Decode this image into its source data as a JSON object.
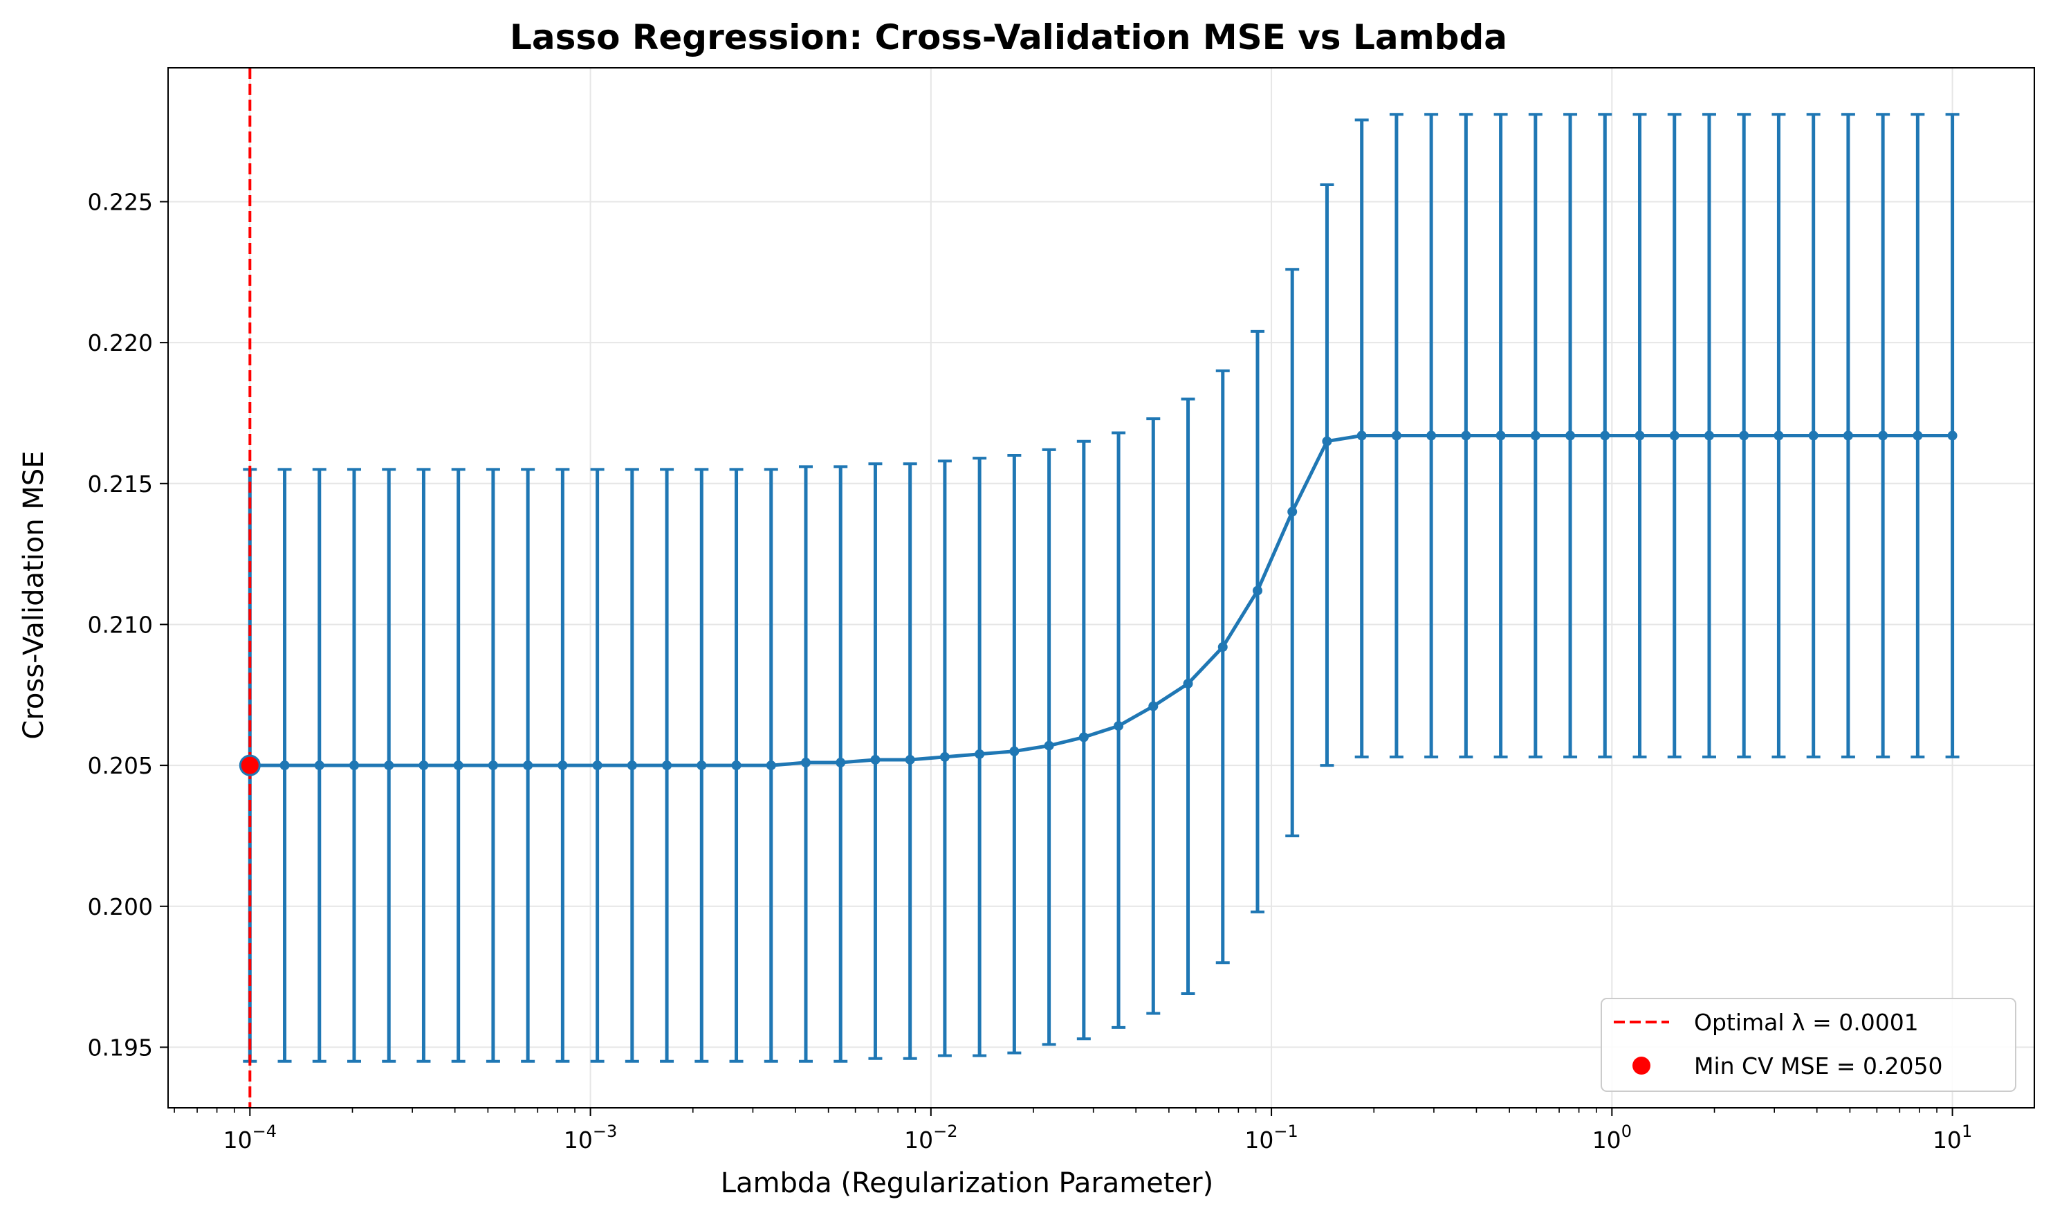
{
  "chart_data": {
    "type": "line",
    "title": "Lasso Regression: Cross-Validation MSE vs Lambda",
    "xlabel": "Lambda (Regularization Parameter)",
    "ylabel": "Cross-Validation MSE",
    "xscale": "log",
    "xlim": [
      5.75e-05,
      17.4
    ],
    "ylim": [
      0.19285,
      0.22975
    ],
    "grid": true,
    "x_ticks": [
      {
        "value": 0.0001,
        "base": "10",
        "exp": "−4"
      },
      {
        "value": 0.001,
        "base": "10",
        "exp": "−3"
      },
      {
        "value": 0.01,
        "base": "10",
        "exp": "−2"
      },
      {
        "value": 0.1,
        "base": "10",
        "exp": "−1"
      },
      {
        "value": 1,
        "base": "10",
        "exp": "0"
      },
      {
        "value": 10,
        "base": "10",
        "exp": "1"
      }
    ],
    "y_ticks": [
      {
        "value": 0.195,
        "label": "0.195"
      },
      {
        "value": 0.2,
        "label": "0.200"
      },
      {
        "value": 0.205,
        "label": "0.205"
      },
      {
        "value": 0.21,
        "label": "0.210"
      },
      {
        "value": 0.215,
        "label": "0.215"
      },
      {
        "value": 0.22,
        "label": "0.220"
      },
      {
        "value": 0.225,
        "label": "0.225"
      }
    ],
    "series": [
      {
        "kind": "errorbar-line",
        "color": "#1f77b4",
        "lambda_range": [
          0.0001,
          10
        ],
        "num_points": 50,
        "mean": [
          0.205,
          0.205,
          0.205,
          0.205,
          0.205,
          0.205,
          0.205,
          0.205,
          0.205,
          0.205,
          0.205,
          0.205,
          0.205,
          0.205,
          0.205,
          0.205,
          0.2051,
          0.2051,
          0.2052,
          0.2052,
          0.2053,
          0.2054,
          0.2055,
          0.2057,
          0.206,
          0.2064,
          0.2071,
          0.2079,
          0.2092,
          0.2112,
          0.214,
          0.2165,
          0.2167,
          0.2167,
          0.2167,
          0.2167,
          0.2167,
          0.2167,
          0.2167,
          0.2167,
          0.2167,
          0.2167,
          0.2167,
          0.2167,
          0.2167,
          0.2167,
          0.2167,
          0.2167,
          0.2167,
          0.2167
        ],
        "err_low": [
          0.1945,
          0.1945,
          0.1945,
          0.1945,
          0.1945,
          0.1945,
          0.1945,
          0.1945,
          0.1945,
          0.1945,
          0.1945,
          0.1945,
          0.1945,
          0.1945,
          0.1945,
          0.1945,
          0.1945,
          0.1945,
          0.1946,
          0.1946,
          0.1947,
          0.1947,
          0.1948,
          0.1951,
          0.1953,
          0.1957,
          0.1962,
          0.1969,
          0.198,
          0.1998,
          0.2025,
          0.205,
          0.2053,
          0.2053,
          0.2053,
          0.2053,
          0.2053,
          0.2053,
          0.2053,
          0.2053,
          0.2053,
          0.2053,
          0.2053,
          0.2053,
          0.2053,
          0.2053,
          0.2053,
          0.2053,
          0.2053,
          0.2053
        ],
        "err_high": [
          0.2155,
          0.2155,
          0.2155,
          0.2155,
          0.2155,
          0.2155,
          0.2155,
          0.2155,
          0.2155,
          0.2155,
          0.2155,
          0.2155,
          0.2155,
          0.2155,
          0.2155,
          0.2155,
          0.2156,
          0.2156,
          0.2157,
          0.2157,
          0.2158,
          0.2159,
          0.216,
          0.2162,
          0.2165,
          0.2168,
          0.2173,
          0.218,
          0.219,
          0.2204,
          0.2226,
          0.2256,
          0.2279,
          0.2281,
          0.2281,
          0.2281,
          0.2281,
          0.2281,
          0.2281,
          0.2281,
          0.2281,
          0.2281,
          0.2281,
          0.2281,
          0.2281,
          0.2281,
          0.2281,
          0.2281,
          0.2281,
          0.2281
        ]
      }
    ],
    "optimal_line": {
      "x": 0.0001,
      "color": "#ff0000",
      "style": "dashed"
    },
    "min_point": {
      "x": 0.0001,
      "y": 0.205,
      "color": "#ff0000"
    },
    "legend": {
      "placement": "bottom-right",
      "entries": [
        {
          "label": "Optimal λ = 0.0001",
          "marker": "dashed-line",
          "color": "#ff0000"
        },
        {
          "label": "Min CV MSE = 0.2050",
          "marker": "circle",
          "color": "#ff0000"
        }
      ]
    }
  }
}
